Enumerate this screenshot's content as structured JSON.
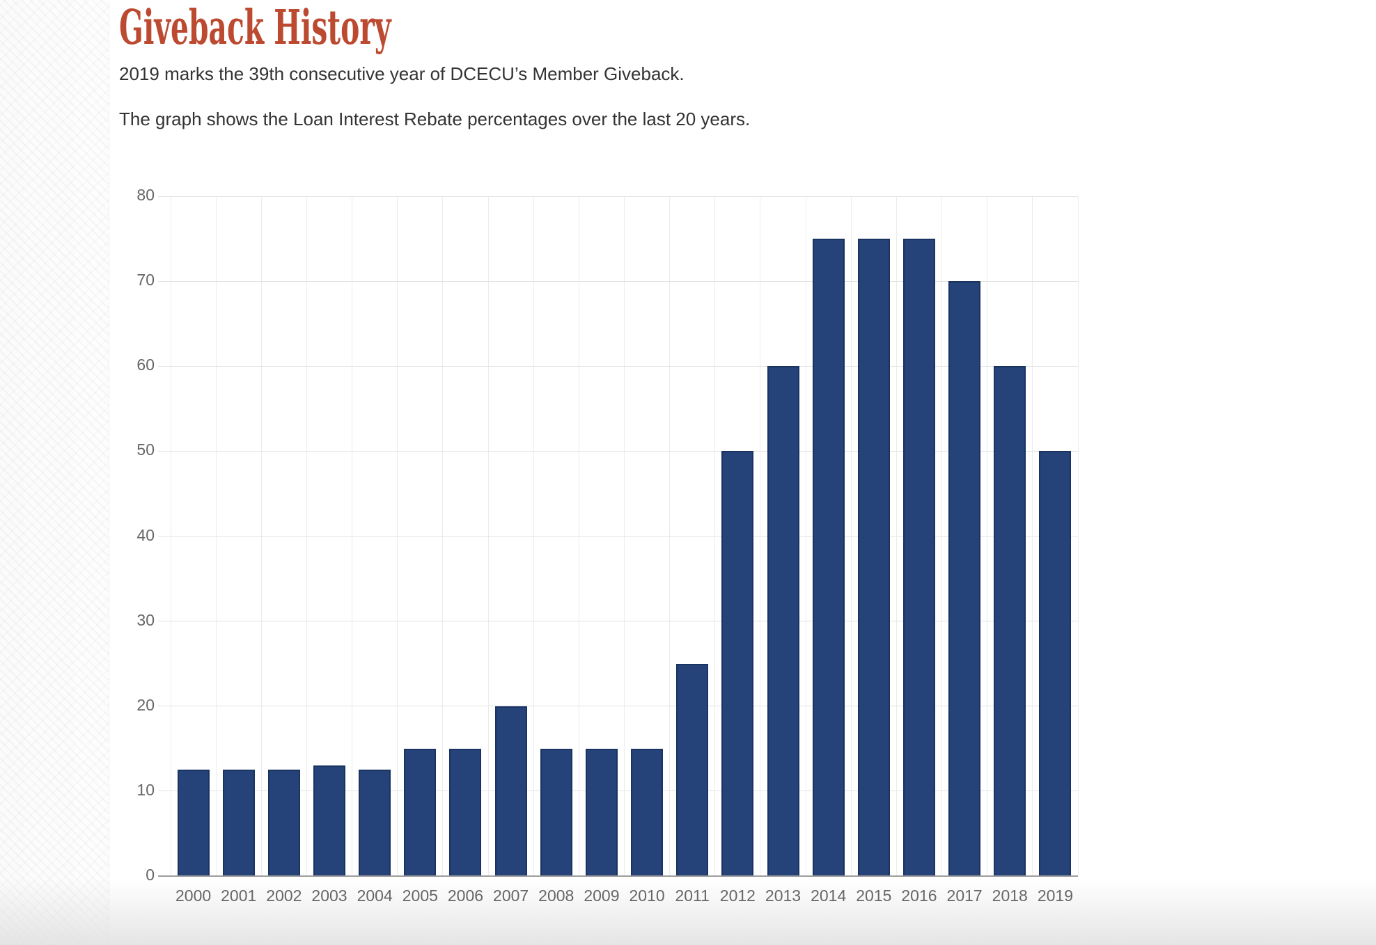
{
  "page": {
    "title": "Giveback History",
    "intro_line1": "2019 marks the 39th consecutive year of DCECU’s Member Giveback.",
    "intro_line2": "The graph shows the Loan Interest Rebate percentages over the last 20 years."
  },
  "colors": {
    "heading_red": "#bc4a31",
    "body_text": "#333333",
    "bar_fill": "#254378",
    "bar_border": "#1a3462",
    "gridline_horizontal": "#e3e3e3",
    "gridline_vertical": "#ececec",
    "axis_line": "#9d9d9d",
    "tick_label": "#666666"
  },
  "chart_data": {
    "type": "bar",
    "title": "",
    "xlabel": "",
    "ylabel": "",
    "categories": [
      "2000",
      "2001",
      "2002",
      "2003",
      "2004",
      "2005",
      "2006",
      "2007",
      "2008",
      "2009",
      "2010",
      "2011",
      "2012",
      "2013",
      "2014",
      "2015",
      "2016",
      "2017",
      "2018",
      "2019"
    ],
    "values": [
      12.5,
      12.5,
      12.5,
      13,
      12.5,
      15,
      15,
      20,
      15,
      15,
      15,
      25,
      50,
      60,
      75,
      75,
      75,
      70,
      60,
      50
    ],
    "ylim": [
      0,
      80
    ],
    "yticks": [
      0,
      10,
      20,
      30,
      40,
      50,
      60,
      70,
      80
    ],
    "grid": true,
    "legend": false
  }
}
